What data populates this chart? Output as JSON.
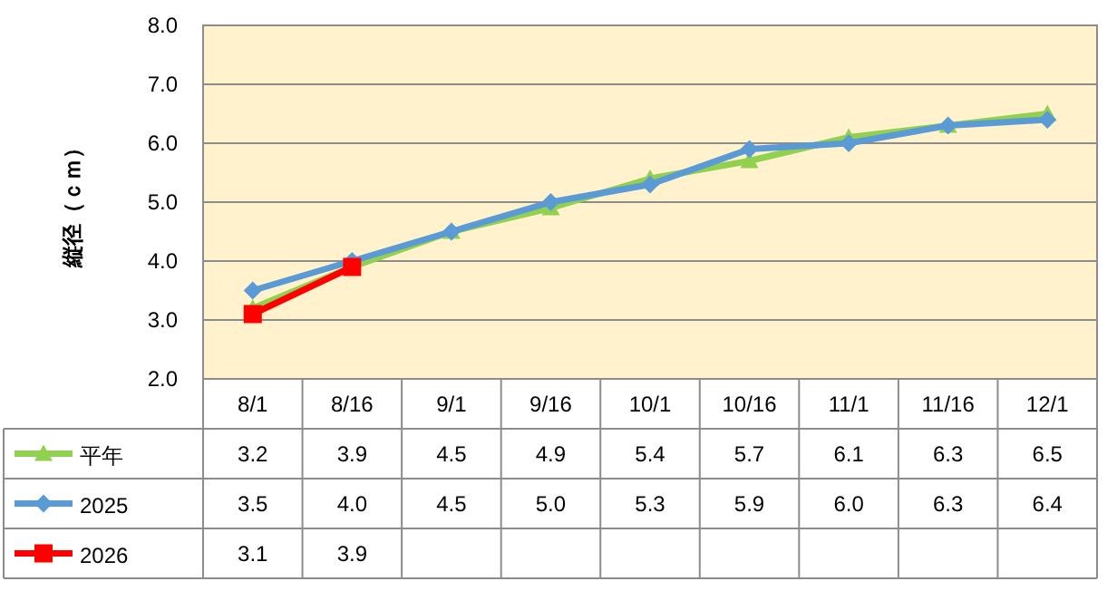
{
  "chart_data": {
    "type": "line",
    "ylabel": "縦径（ｃｍ）",
    "categories": [
      "8/1",
      "8/16",
      "9/1",
      "9/16",
      "10/1",
      "10/16",
      "11/1",
      "11/16",
      "12/1"
    ],
    "series": [
      {
        "name": "平年",
        "color": "#92d050",
        "marker": "triangle",
        "values": [
          3.2,
          3.9,
          4.5,
          4.9,
          5.4,
          5.7,
          6.1,
          6.3,
          6.5
        ],
        "value_labels": [
          "3.2",
          "3.9",
          "4.5",
          "4.9",
          "5.4",
          "5.7",
          "6.1",
          "6.3",
          "6.5"
        ]
      },
      {
        "name": "2025",
        "color": "#5b9bd5",
        "marker": "diamond",
        "values": [
          3.5,
          4.0,
          4.5,
          5.0,
          5.3,
          5.9,
          6.0,
          6.3,
          6.4
        ],
        "value_labels": [
          "3.5",
          "4.0",
          "4.5",
          "5.0",
          "5.3",
          "5.9",
          "6.0",
          "6.3",
          "6.4"
        ]
      },
      {
        "name": "2026",
        "color": "#ff0000",
        "marker": "square",
        "values": [
          3.1,
          3.9,
          null,
          null,
          null,
          null,
          null,
          null,
          null
        ],
        "value_labels": [
          "3.1",
          "3.9",
          null,
          null,
          null,
          null,
          null,
          null,
          null
        ]
      }
    ],
    "ylim": [
      2.0,
      8.0
    ],
    "yticks": [
      {
        "value": 2,
        "label": "2.0"
      },
      {
        "value": 3,
        "label": "3.0"
      },
      {
        "value": 4,
        "label": "4.0"
      },
      {
        "value": 5,
        "label": "5.0"
      },
      {
        "value": 6,
        "label": "6.0"
      },
      {
        "value": 7,
        "label": "7.0"
      },
      {
        "value": 8,
        "label": "8.0"
      }
    ],
    "grid": "y",
    "legend": "bottom"
  }
}
